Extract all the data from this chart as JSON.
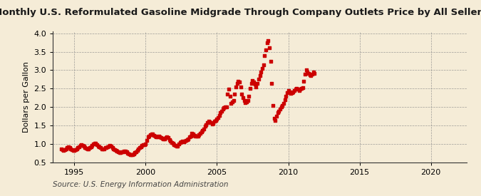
{
  "title": "Monthly U.S. Reformulated Gasoline Midgrade Through Company Outlets Price by All Sellers",
  "ylabel": "Dollars per Gallon",
  "source": "Source: U.S. Energy Information Administration",
  "bg_color": "#f5ecd7",
  "marker_color": "#cc0000",
  "xlim": [
    1993.5,
    2022.5
  ],
  "ylim": [
    0.5,
    4.05
  ],
  "yticks": [
    0.5,
    1.0,
    1.5,
    2.0,
    2.5,
    3.0,
    3.5,
    4.0
  ],
  "xticks": [
    1995,
    2000,
    2005,
    2010,
    2015,
    2020
  ],
  "data": [
    [
      1994.083,
      0.87
    ],
    [
      1994.167,
      0.85
    ],
    [
      1994.25,
      0.84
    ],
    [
      1994.333,
      0.86
    ],
    [
      1994.417,
      0.88
    ],
    [
      1994.5,
      0.91
    ],
    [
      1994.583,
      0.93
    ],
    [
      1994.667,
      0.9
    ],
    [
      1994.75,
      0.87
    ],
    [
      1994.833,
      0.85
    ],
    [
      1994.917,
      0.84
    ],
    [
      1995.0,
      0.83
    ],
    [
      1995.083,
      0.85
    ],
    [
      1995.167,
      0.88
    ],
    [
      1995.25,
      0.91
    ],
    [
      1995.333,
      0.93
    ],
    [
      1995.417,
      0.97
    ],
    [
      1995.5,
      0.99
    ],
    [
      1995.583,
      0.97
    ],
    [
      1995.667,
      0.94
    ],
    [
      1995.75,
      0.91
    ],
    [
      1995.833,
      0.89
    ],
    [
      1995.917,
      0.87
    ],
    [
      1996.0,
      0.88
    ],
    [
      1996.083,
      0.9
    ],
    [
      1996.167,
      0.92
    ],
    [
      1996.25,
      0.97
    ],
    [
      1996.333,
      1.01
    ],
    [
      1996.417,
      1.03
    ],
    [
      1996.5,
      1.02
    ],
    [
      1996.583,
      0.98
    ],
    [
      1996.667,
      0.95
    ],
    [
      1996.75,
      0.92
    ],
    [
      1996.833,
      0.9
    ],
    [
      1996.917,
      0.88
    ],
    [
      1997.0,
      0.87
    ],
    [
      1997.083,
      0.88
    ],
    [
      1997.167,
      0.9
    ],
    [
      1997.25,
      0.91
    ],
    [
      1997.333,
      0.93
    ],
    [
      1997.417,
      0.95
    ],
    [
      1997.5,
      0.96
    ],
    [
      1997.583,
      0.94
    ],
    [
      1997.667,
      0.91
    ],
    [
      1997.75,
      0.88
    ],
    [
      1997.833,
      0.86
    ],
    [
      1997.917,
      0.84
    ],
    [
      1998.0,
      0.82
    ],
    [
      1998.083,
      0.8
    ],
    [
      1998.167,
      0.78
    ],
    [
      1998.25,
      0.78
    ],
    [
      1998.333,
      0.79
    ],
    [
      1998.417,
      0.8
    ],
    [
      1998.5,
      0.82
    ],
    [
      1998.583,
      0.81
    ],
    [
      1998.667,
      0.79
    ],
    [
      1998.75,
      0.76
    ],
    [
      1998.833,
      0.74
    ],
    [
      1998.917,
      0.72
    ],
    [
      1999.0,
      0.71
    ],
    [
      1999.083,
      0.72
    ],
    [
      1999.167,
      0.74
    ],
    [
      1999.25,
      0.77
    ],
    [
      1999.333,
      0.8
    ],
    [
      1999.417,
      0.84
    ],
    [
      1999.5,
      0.88
    ],
    [
      1999.583,
      0.9
    ],
    [
      1999.667,
      0.93
    ],
    [
      1999.75,
      0.96
    ],
    [
      1999.833,
      0.98
    ],
    [
      1999.917,
      0.99
    ],
    [
      2000.0,
      1.0
    ],
    [
      2000.083,
      1.1
    ],
    [
      2000.167,
      1.2
    ],
    [
      2000.25,
      1.22
    ],
    [
      2000.333,
      1.25
    ],
    [
      2000.417,
      1.28
    ],
    [
      2000.5,
      1.27
    ],
    [
      2000.583,
      1.24
    ],
    [
      2000.667,
      1.22
    ],
    [
      2000.75,
      1.2
    ],
    [
      2000.833,
      1.19
    ],
    [
      2000.917,
      1.21
    ],
    [
      2001.0,
      1.2
    ],
    [
      2001.083,
      1.18
    ],
    [
      2001.167,
      1.16
    ],
    [
      2001.25,
      1.14
    ],
    [
      2001.333,
      1.15
    ],
    [
      2001.417,
      1.17
    ],
    [
      2001.5,
      1.19
    ],
    [
      2001.583,
      1.17
    ],
    [
      2001.667,
      1.13
    ],
    [
      2001.75,
      1.09
    ],
    [
      2001.833,
      1.05
    ],
    [
      2001.917,
      1.02
    ],
    [
      2002.0,
      0.98
    ],
    [
      2002.083,
      0.96
    ],
    [
      2002.167,
      0.95
    ],
    [
      2002.25,
      0.94
    ],
    [
      2002.333,
      1.0
    ],
    [
      2002.417,
      1.05
    ],
    [
      2002.5,
      1.07
    ],
    [
      2002.583,
      1.08
    ],
    [
      2002.667,
      1.07
    ],
    [
      2002.75,
      1.08
    ],
    [
      2002.833,
      1.1
    ],
    [
      2002.917,
      1.12
    ],
    [
      2003.0,
      1.15
    ],
    [
      2003.083,
      1.2
    ],
    [
      2003.167,
      1.22
    ],
    [
      2003.25,
      1.3
    ],
    [
      2003.333,
      1.28
    ],
    [
      2003.417,
      1.24
    ],
    [
      2003.5,
      1.22
    ],
    [
      2003.583,
      1.21
    ],
    [
      2003.667,
      1.22
    ],
    [
      2003.75,
      1.25
    ],
    [
      2003.833,
      1.3
    ],
    [
      2003.917,
      1.33
    ],
    [
      2004.0,
      1.37
    ],
    [
      2004.083,
      1.42
    ],
    [
      2004.167,
      1.48
    ],
    [
      2004.25,
      1.52
    ],
    [
      2004.333,
      1.58
    ],
    [
      2004.417,
      1.62
    ],
    [
      2004.5,
      1.6
    ],
    [
      2004.583,
      1.58
    ],
    [
      2004.667,
      1.55
    ],
    [
      2004.75,
      1.57
    ],
    [
      2004.833,
      1.62
    ],
    [
      2004.917,
      1.65
    ],
    [
      2005.0,
      1.68
    ],
    [
      2005.083,
      1.72
    ],
    [
      2005.167,
      1.78
    ],
    [
      2005.25,
      1.85
    ],
    [
      2005.333,
      1.9
    ],
    [
      2005.417,
      1.95
    ],
    [
      2005.5,
      1.98
    ],
    [
      2005.583,
      2.0
    ],
    [
      2005.667,
      2.0
    ],
    [
      2005.75,
      2.35
    ],
    [
      2005.833,
      2.48
    ],
    [
      2005.917,
      2.3
    ],
    [
      2006.0,
      2.1
    ],
    [
      2006.083,
      2.15
    ],
    [
      2006.167,
      2.18
    ],
    [
      2006.25,
      2.35
    ],
    [
      2006.333,
      2.55
    ],
    [
      2006.417,
      2.65
    ],
    [
      2006.5,
      2.7
    ],
    [
      2006.583,
      2.68
    ],
    [
      2006.667,
      2.55
    ],
    [
      2006.75,
      2.35
    ],
    [
      2006.833,
      2.25
    ],
    [
      2006.917,
      2.18
    ],
    [
      2007.0,
      2.12
    ],
    [
      2007.083,
      2.15
    ],
    [
      2007.167,
      2.18
    ],
    [
      2007.25,
      2.3
    ],
    [
      2007.333,
      2.5
    ],
    [
      2007.417,
      2.65
    ],
    [
      2007.5,
      2.72
    ],
    [
      2007.583,
      2.68
    ],
    [
      2007.667,
      2.62
    ],
    [
      2007.75,
      2.55
    ],
    [
      2007.833,
      2.65
    ],
    [
      2007.917,
      2.75
    ],
    [
      2008.0,
      2.85
    ],
    [
      2008.083,
      2.95
    ],
    [
      2008.167,
      3.05
    ],
    [
      2008.25,
      3.15
    ],
    [
      2008.333,
      3.4
    ],
    [
      2008.417,
      3.55
    ],
    [
      2008.5,
      3.75
    ],
    [
      2008.583,
      3.8
    ],
    [
      2008.667,
      3.6
    ],
    [
      2008.75,
      3.25
    ],
    [
      2008.833,
      2.65
    ],
    [
      2008.917,
      2.05
    ],
    [
      2009.0,
      1.7
    ],
    [
      2009.083,
      1.65
    ],
    [
      2009.167,
      1.75
    ],
    [
      2009.25,
      1.85
    ],
    [
      2009.333,
      1.9
    ],
    [
      2009.417,
      1.95
    ],
    [
      2009.5,
      2.0
    ],
    [
      2009.583,
      2.05
    ],
    [
      2009.667,
      2.1
    ],
    [
      2009.75,
      2.2
    ],
    [
      2009.833,
      2.3
    ],
    [
      2009.917,
      2.4
    ],
    [
      2010.0,
      2.45
    ],
    [
      2010.083,
      2.42
    ],
    [
      2010.167,
      2.38
    ],
    [
      2010.25,
      2.4
    ],
    [
      2010.333,
      2.42
    ],
    [
      2010.417,
      2.45
    ],
    [
      2010.5,
      2.48
    ],
    [
      2010.583,
      2.5
    ],
    [
      2010.667,
      2.48
    ],
    [
      2010.75,
      2.46
    ],
    [
      2010.833,
      2.48
    ],
    [
      2010.917,
      2.5
    ],
    [
      2011.0,
      2.52
    ],
    [
      2011.083,
      2.7
    ],
    [
      2011.167,
      2.9
    ],
    [
      2011.25,
      3.0
    ],
    [
      2011.333,
      2.95
    ],
    [
      2011.417,
      2.92
    ],
    [
      2011.5,
      2.88
    ],
    [
      2011.583,
      2.85
    ],
    [
      2011.667,
      2.9
    ],
    [
      2011.75,
      2.95
    ],
    [
      2011.833,
      2.92
    ]
  ]
}
